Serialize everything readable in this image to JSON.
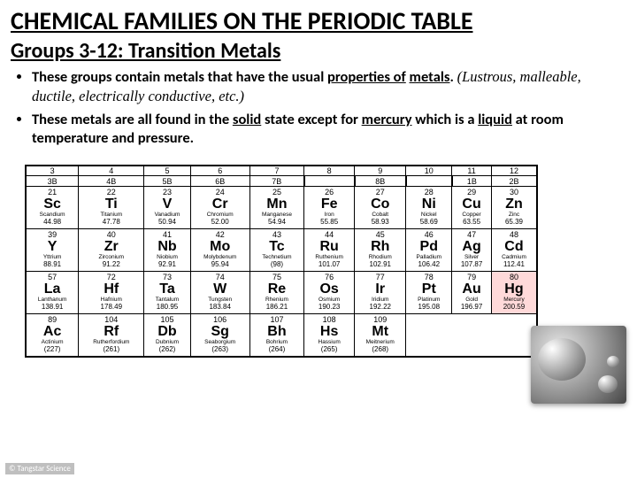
{
  "title": "CHEMICAL FAMILIES ON THE PERIODIC TABLE",
  "subtitle": "Groups 3-12: Transition Metals",
  "bullets": [
    {
      "pre": "These groups contain metals that have the usual ",
      "fill1": "properties of",
      "mid": " ",
      "fill2": "metals",
      "post": ". ",
      "italic": "(Lustrous, malleable, ductile, electrically conductive, etc.)"
    },
    {
      "pre": "These metals are all found in the ",
      "fill1": "solid",
      "mid": " state except for ",
      "fill2": "mercury",
      "post": " which is a ",
      "fill3": "liquid",
      "tail": " at room temperature and pressure."
    }
  ],
  "groups_top": [
    "3",
    "4",
    "5",
    "6",
    "7",
    "8",
    "9",
    "10",
    "11",
    "12"
  ],
  "groups_sub": [
    "3B",
    "4B",
    "5B",
    "6B",
    "7B",
    "",
    "8B",
    "",
    "1B",
    "2B"
  ],
  "rows": [
    [
      {
        "n": "21",
        "s": "Sc",
        "nm": "Scandium",
        "m": "44.98"
      },
      {
        "n": "22",
        "s": "Ti",
        "nm": "Titanium",
        "m": "47.78"
      },
      {
        "n": "23",
        "s": "V",
        "nm": "Vanadium",
        "m": "50.94"
      },
      {
        "n": "24",
        "s": "Cr",
        "nm": "Chromium",
        "m": "52.00"
      },
      {
        "n": "25",
        "s": "Mn",
        "nm": "Manganese",
        "m": "54.94"
      },
      {
        "n": "26",
        "s": "Fe",
        "nm": "Iron",
        "m": "55.85"
      },
      {
        "n": "27",
        "s": "Co",
        "nm": "Cobalt",
        "m": "58.93"
      },
      {
        "n": "28",
        "s": "Ni",
        "nm": "Nickel",
        "m": "58.69"
      },
      {
        "n": "29",
        "s": "Cu",
        "nm": "Copper",
        "m": "63.55"
      },
      {
        "n": "30",
        "s": "Zn",
        "nm": "Zinc",
        "m": "65.39"
      }
    ],
    [
      {
        "n": "39",
        "s": "Y",
        "nm": "Yttrium",
        "m": "88.91"
      },
      {
        "n": "40",
        "s": "Zr",
        "nm": "Zirconium",
        "m": "91.22"
      },
      {
        "n": "41",
        "s": "Nb",
        "nm": "Niobium",
        "m": "92.91"
      },
      {
        "n": "42",
        "s": "Mo",
        "nm": "Molybdenum",
        "m": "95.94"
      },
      {
        "n": "43",
        "s": "Tc",
        "nm": "Technetium",
        "m": "(98)"
      },
      {
        "n": "44",
        "s": "Ru",
        "nm": "Ruthenium",
        "m": "101.07"
      },
      {
        "n": "45",
        "s": "Rh",
        "nm": "Rhodium",
        "m": "102.91"
      },
      {
        "n": "46",
        "s": "Pd",
        "nm": "Palladium",
        "m": "106.42"
      },
      {
        "n": "47",
        "s": "Ag",
        "nm": "Silver",
        "m": "107.87"
      },
      {
        "n": "48",
        "s": "Cd",
        "nm": "Cadmium",
        "m": "112.41"
      }
    ],
    [
      {
        "n": "57",
        "s": "La",
        "nm": "Lanthanum",
        "m": "138.91"
      },
      {
        "n": "72",
        "s": "Hf",
        "nm": "Hafnium",
        "m": "178.49"
      },
      {
        "n": "73",
        "s": "Ta",
        "nm": "Tantalum",
        "m": "180.95"
      },
      {
        "n": "74",
        "s": "W",
        "nm": "Tungsten",
        "m": "183.84"
      },
      {
        "n": "75",
        "s": "Re",
        "nm": "Rhenium",
        "m": "186.21"
      },
      {
        "n": "76",
        "s": "Os",
        "nm": "Osmium",
        "m": "190.23"
      },
      {
        "n": "77",
        "s": "Ir",
        "nm": "Iridium",
        "m": "192.22"
      },
      {
        "n": "78",
        "s": "Pt",
        "nm": "Platinum",
        "m": "195.08"
      },
      {
        "n": "79",
        "s": "Au",
        "nm": "Gold",
        "m": "196.97"
      },
      {
        "n": "80",
        "s": "Hg",
        "nm": "Mercury",
        "m": "200.59",
        "hl": true
      }
    ],
    [
      {
        "n": "89",
        "s": "Ac",
        "nm": "Actinium",
        "m": "(227)"
      },
      {
        "n": "104",
        "s": "Rf",
        "nm": "Rutherfordium",
        "m": "(261)"
      },
      {
        "n": "105",
        "s": "Db",
        "nm": "Dubnium",
        "m": "(262)"
      },
      {
        "n": "106",
        "s": "Sg",
        "nm": "Seaborgium",
        "m": "(263)"
      },
      {
        "n": "107",
        "s": "Bh",
        "nm": "Bohrium",
        "m": "(264)"
      },
      {
        "n": "108",
        "s": "Hs",
        "nm": "Hassium",
        "m": "(265)"
      },
      {
        "n": "109",
        "s": "Mt",
        "nm": "Meitnerium",
        "m": "(268)"
      },
      null,
      null,
      null
    ]
  ],
  "copyright": "© Tangstar Science"
}
